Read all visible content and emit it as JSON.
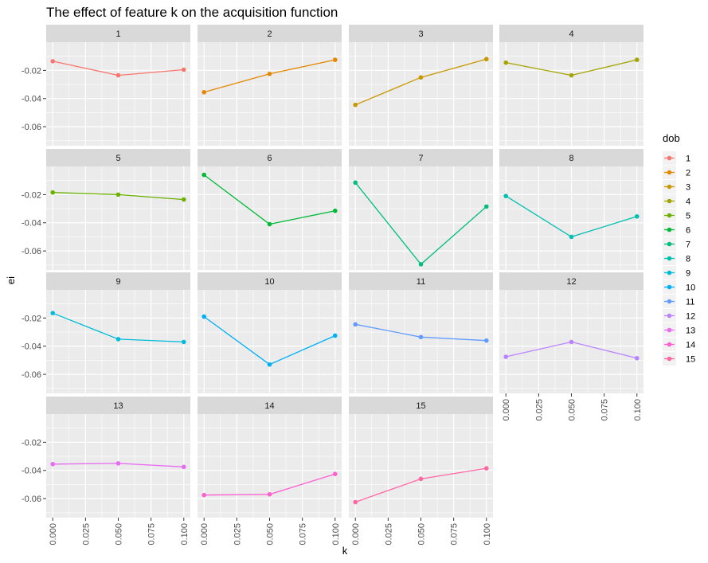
{
  "chart_data": {
    "type": "line",
    "title": "The effect of feature k on the acquisition function",
    "xlabel": "k",
    "ylabel": "ei",
    "x": [
      0.0,
      0.05,
      0.1
    ],
    "x_ticks": [
      0.0,
      0.025,
      0.05,
      0.075,
      0.1
    ],
    "x_tick_labels": [
      "0.000",
      "0.025",
      "0.050",
      "0.075",
      "0.100"
    ],
    "xlim": [
      -0.005,
      0.105
    ],
    "y_ticks": [
      -0.02,
      -0.04,
      -0.06
    ],
    "y_tick_labels": [
      "-0.02",
      "-0.04",
      "-0.06"
    ],
    "ylim": [
      -0.0735,
      0.0
    ],
    "facet_layout": "wrap 4 columns",
    "grid": true,
    "legend": {
      "title": "dob",
      "position": "right"
    },
    "series": [
      {
        "name": "1",
        "color": "#F8766D",
        "values": [
          -0.0135,
          -0.0235,
          -0.0195
        ]
      },
      {
        "name": "2",
        "color": "#E58700",
        "values": [
          -0.0355,
          -0.0225,
          -0.0125
        ]
      },
      {
        "name": "3",
        "color": "#C99800",
        "values": [
          -0.0445,
          -0.025,
          -0.012
        ]
      },
      {
        "name": "4",
        "color": "#A3A500",
        "values": [
          -0.0145,
          -0.0235,
          -0.0125
        ]
      },
      {
        "name": "5",
        "color": "#6BB100",
        "values": [
          -0.0185,
          -0.02,
          -0.0235
        ]
      },
      {
        "name": "6",
        "color": "#00BA38",
        "values": [
          -0.006,
          -0.041,
          -0.0315
        ]
      },
      {
        "name": "7",
        "color": "#00BF7D",
        "values": [
          -0.0115,
          -0.0695,
          -0.0285
        ]
      },
      {
        "name": "8",
        "color": "#00C0AF",
        "values": [
          -0.021,
          -0.05,
          -0.0355
        ]
      },
      {
        "name": "9",
        "color": "#00BCD8",
        "values": [
          -0.0165,
          -0.035,
          -0.037
        ]
      },
      {
        "name": "10",
        "color": "#00B0F6",
        "values": [
          -0.019,
          -0.053,
          -0.0325
        ]
      },
      {
        "name": "11",
        "color": "#619CFF",
        "values": [
          -0.0245,
          -0.0335,
          -0.036
        ]
      },
      {
        "name": "12",
        "color": "#B983FF",
        "values": [
          -0.0475,
          -0.037,
          -0.0485
        ]
      },
      {
        "name": "13",
        "color": "#E76BF3",
        "values": [
          -0.0355,
          -0.035,
          -0.0375
        ]
      },
      {
        "name": "14",
        "color": "#FD61D1",
        "values": [
          -0.0575,
          -0.057,
          -0.0425
        ]
      },
      {
        "name": "15",
        "color": "#FF67A4",
        "values": [
          -0.0625,
          -0.046,
          -0.0385
        ]
      }
    ]
  }
}
